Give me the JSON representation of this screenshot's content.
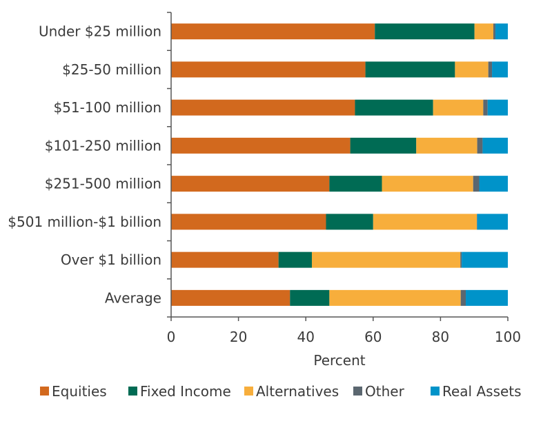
{
  "chart_data": {
    "type": "bar",
    "orientation": "horizontal",
    "stacked": true,
    "categories": [
      "Under $25 million",
      "$25-50 million",
      "$51-100 million",
      "$101-250 million",
      "$251-500 million",
      "$501 million-$1 billion",
      "Over $1 billion",
      "Average"
    ],
    "series": [
      {
        "name": "Equities",
        "color": "#D2691E",
        "values": [
          60.5,
          57.7,
          54.6,
          53.2,
          47.0,
          46.0,
          31.9,
          35.3
        ]
      },
      {
        "name": "Fixed Income",
        "color": "#006B54",
        "values": [
          29.6,
          26.6,
          23.2,
          19.6,
          15.6,
          14.0,
          9.9,
          11.7
        ]
      },
      {
        "name": "Alternatives",
        "color": "#F7AE3C",
        "values": [
          5.6,
          9.9,
          14.9,
          18.1,
          27.1,
          30.8,
          44.1,
          39.0
        ]
      },
      {
        "name": "Other",
        "color": "#5B6770",
        "values": [
          0.6,
          1.1,
          1.3,
          1.6,
          1.8,
          0.1,
          0.4,
          1.5
        ]
      },
      {
        "name": "Real Assets",
        "color": "#0093C9",
        "values": [
          3.7,
          4.7,
          6.0,
          7.5,
          8.5,
          9.1,
          13.7,
          12.5
        ]
      }
    ],
    "xlabel": "Percent",
    "ylabel": "",
    "xlim": [
      0,
      100
    ],
    "xticks": [
      0,
      20,
      40,
      60,
      80,
      100
    ],
    "grid": false,
    "legend_position": "bottom"
  }
}
